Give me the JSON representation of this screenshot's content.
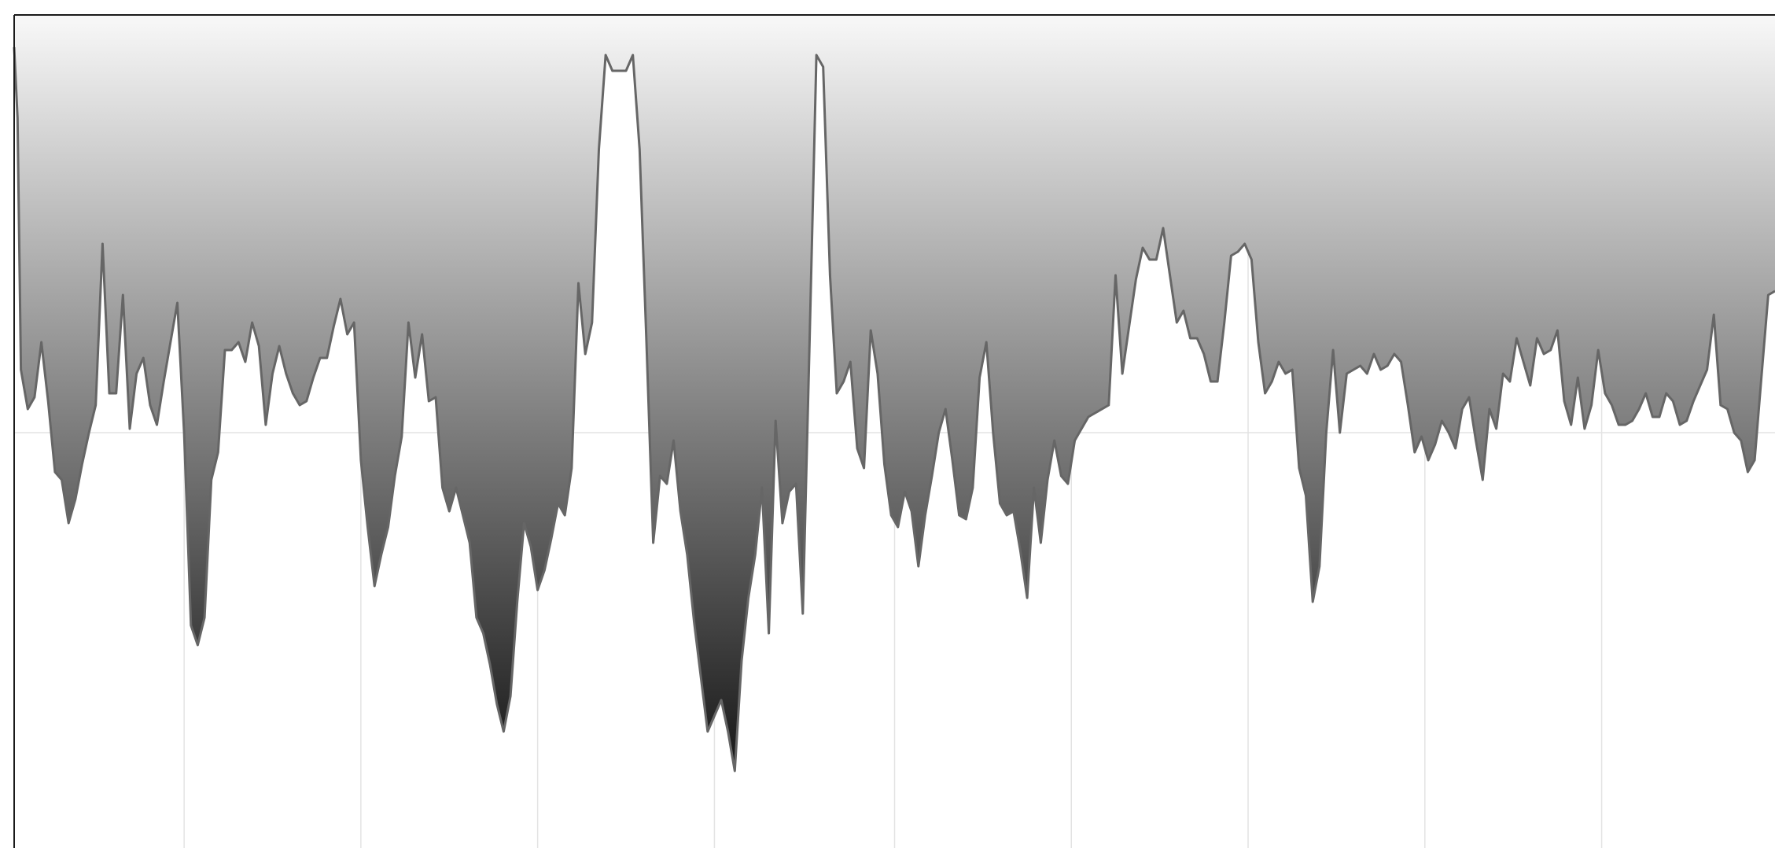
{
  "chart_data": {
    "type": "area",
    "title": "",
    "xlabel": "",
    "ylabel": "",
    "grid": true,
    "xlim": [
      0,
      518
    ],
    "ylim": [
      -100,
      100
    ],
    "x_gridlines": [
      50,
      102,
      154,
      206,
      259,
      311,
      363,
      415,
      467
    ],
    "y_gridlines": [
      0
    ],
    "fill_gradient": [
      "#f8f8f8",
      "#000000"
    ],
    "line_color": "#666666",
    "series": [
      {
        "name": "",
        "points": [
          [
            0,
            98
          ],
          [
            1,
            80
          ],
          [
            2,
            16
          ],
          [
            4,
            6
          ],
          [
            6,
            9
          ],
          [
            8,
            23
          ],
          [
            10,
            8
          ],
          [
            12,
            -10
          ],
          [
            14,
            -12
          ],
          [
            16,
            -23
          ],
          [
            18,
            -17
          ],
          [
            20,
            -8
          ],
          [
            22,
            0
          ],
          [
            24,
            7
          ],
          [
            26,
            48
          ],
          [
            28,
            10
          ],
          [
            30,
            10
          ],
          [
            32,
            35
          ],
          [
            34,
            1
          ],
          [
            36,
            15
          ],
          [
            38,
            19
          ],
          [
            40,
            7
          ],
          [
            42,
            2
          ],
          [
            44,
            13
          ],
          [
            46,
            23
          ],
          [
            48,
            33
          ],
          [
            50,
            0
          ],
          [
            52,
            -49
          ],
          [
            54,
            -54
          ],
          [
            56,
            -47
          ],
          [
            58,
            -12
          ],
          [
            60,
            -5
          ],
          [
            62,
            21
          ],
          [
            64,
            21
          ],
          [
            66,
            23
          ],
          [
            68,
            18
          ],
          [
            70,
            28
          ],
          [
            72,
            22
          ],
          [
            74,
            2
          ],
          [
            76,
            15
          ],
          [
            78,
            22
          ],
          [
            80,
            15
          ],
          [
            82,
            10
          ],
          [
            84,
            7
          ],
          [
            86,
            8
          ],
          [
            88,
            14
          ],
          [
            90,
            19
          ],
          [
            92,
            19
          ],
          [
            94,
            27
          ],
          [
            96,
            34
          ],
          [
            98,
            25
          ],
          [
            100,
            28
          ],
          [
            102,
            -7
          ],
          [
            104,
            -24
          ],
          [
            106,
            -39
          ],
          [
            108,
            -31
          ],
          [
            110,
            -24
          ],
          [
            112,
            -11
          ],
          [
            114,
            -1
          ],
          [
            116,
            28
          ],
          [
            118,
            14
          ],
          [
            120,
            25
          ],
          [
            122,
            8
          ],
          [
            124,
            9
          ],
          [
            126,
            -14
          ],
          [
            128,
            -20
          ],
          [
            130,
            -14
          ],
          [
            132,
            -21
          ],
          [
            134,
            -28
          ],
          [
            136,
            -47
          ],
          [
            138,
            -51
          ],
          [
            140,
            -59
          ],
          [
            142,
            -69
          ],
          [
            144,
            -76
          ],
          [
            146,
            -67
          ],
          [
            148,
            -43
          ],
          [
            150,
            -23
          ],
          [
            152,
            -29
          ],
          [
            154,
            -40
          ],
          [
            156,
            -35
          ],
          [
            158,
            -27
          ],
          [
            160,
            -18
          ],
          [
            162,
            -21
          ],
          [
            164,
            -9
          ],
          [
            166,
            38
          ],
          [
            168,
            20
          ],
          [
            170,
            28
          ],
          [
            172,
            72
          ],
          [
            174,
            96
          ],
          [
            176,
            92
          ],
          [
            178,
            92
          ],
          [
            180,
            92
          ],
          [
            182,
            96
          ],
          [
            184,
            72
          ],
          [
            186,
            23
          ],
          [
            188,
            -28
          ],
          [
            190,
            -11
          ],
          [
            192,
            -13
          ],
          [
            194,
            -2
          ],
          [
            196,
            -20
          ],
          [
            198,
            -31
          ],
          [
            200,
            -48
          ],
          [
            202,
            -62
          ],
          [
            204,
            -76
          ],
          [
            206,
            -72
          ],
          [
            208,
            -68
          ],
          [
            210,
            -76
          ],
          [
            212,
            -86
          ],
          [
            214,
            -58
          ],
          [
            216,
            -42
          ],
          [
            218,
            -31
          ],
          [
            220,
            -14
          ],
          [
            222,
            -51
          ],
          [
            224,
            3
          ],
          [
            226,
            -23
          ],
          [
            228,
            -15
          ],
          [
            230,
            -13
          ],
          [
            232,
            -46
          ],
          [
            234,
            23
          ],
          [
            236,
            96
          ],
          [
            238,
            93
          ],
          [
            240,
            40
          ],
          [
            242,
            10
          ],
          [
            244,
            13
          ],
          [
            246,
            18
          ],
          [
            248,
            -4
          ],
          [
            250,
            -9
          ],
          [
            252,
            26
          ],
          [
            254,
            15
          ],
          [
            256,
            -8
          ],
          [
            258,
            -21
          ],
          [
            260,
            -24
          ],
          [
            262,
            -15
          ],
          [
            264,
            -20
          ],
          [
            266,
            -34
          ],
          [
            268,
            -21
          ],
          [
            270,
            -11
          ],
          [
            272,
            0
          ],
          [
            274,
            6
          ],
          [
            276,
            -7
          ],
          [
            278,
            -21
          ],
          [
            280,
            -22
          ],
          [
            282,
            -14
          ],
          [
            284,
            14
          ],
          [
            286,
            23
          ],
          [
            288,
            0
          ],
          [
            290,
            -18
          ],
          [
            292,
            -21
          ],
          [
            294,
            -20
          ],
          [
            296,
            -30
          ],
          [
            298,
            -42
          ],
          [
            300,
            -14
          ],
          [
            302,
            -28
          ],
          [
            304,
            -12
          ],
          [
            306,
            -2
          ],
          [
            308,
            -11
          ],
          [
            310,
            -13
          ],
          [
            312,
            -2
          ],
          [
            314,
            1
          ],
          [
            316,
            4
          ],
          [
            318,
            5
          ],
          [
            320,
            6
          ],
          [
            322,
            7
          ],
          [
            324,
            40
          ],
          [
            326,
            15
          ],
          [
            328,
            27
          ],
          [
            330,
            39
          ],
          [
            332,
            47
          ],
          [
            334,
            44
          ],
          [
            336,
            44
          ],
          [
            338,
            52
          ],
          [
            340,
            40
          ],
          [
            342,
            28
          ],
          [
            344,
            31
          ],
          [
            346,
            24
          ],
          [
            348,
            24
          ],
          [
            350,
            20
          ],
          [
            352,
            13
          ],
          [
            354,
            13
          ],
          [
            356,
            28
          ],
          [
            358,
            45
          ],
          [
            360,
            46
          ],
          [
            362,
            48
          ],
          [
            364,
            44
          ],
          [
            366,
            23
          ],
          [
            368,
            10
          ],
          [
            370,
            13
          ],
          [
            372,
            18
          ],
          [
            374,
            15
          ],
          [
            376,
            16
          ],
          [
            378,
            -9
          ],
          [
            380,
            -16
          ],
          [
            382,
            -43
          ],
          [
            384,
            -34
          ],
          [
            386,
            0
          ],
          [
            388,
            21
          ],
          [
            390,
            0
          ],
          [
            392,
            15
          ],
          [
            394,
            16
          ],
          [
            396,
            17
          ],
          [
            398,
            15
          ],
          [
            400,
            20
          ],
          [
            402,
            16
          ],
          [
            404,
            17
          ],
          [
            406,
            20
          ],
          [
            408,
            18
          ],
          [
            410,
            7
          ],
          [
            412,
            -5
          ],
          [
            414,
            -1
          ],
          [
            416,
            -7
          ],
          [
            418,
            -3
          ],
          [
            420,
            3
          ],
          [
            422,
            0
          ],
          [
            424,
            -4
          ],
          [
            426,
            6
          ],
          [
            428,
            9
          ],
          [
            430,
            -2
          ],
          [
            432,
            -12
          ],
          [
            434,
            6
          ],
          [
            436,
            1
          ],
          [
            438,
            15
          ],
          [
            440,
            13
          ],
          [
            442,
            24
          ],
          [
            444,
            18
          ],
          [
            446,
            12
          ],
          [
            448,
            24
          ],
          [
            450,
            20
          ],
          [
            452,
            21
          ],
          [
            454,
            26
          ],
          [
            456,
            8
          ],
          [
            458,
            2
          ],
          [
            460,
            14
          ],
          [
            462,
            1
          ],
          [
            464,
            7
          ],
          [
            466,
            21
          ],
          [
            468,
            10
          ],
          [
            470,
            7
          ],
          [
            472,
            2
          ],
          [
            474,
            2
          ],
          [
            476,
            3
          ],
          [
            478,
            6
          ],
          [
            480,
            10
          ],
          [
            482,
            4
          ],
          [
            484,
            4
          ],
          [
            486,
            10
          ],
          [
            488,
            8
          ],
          [
            490,
            2
          ],
          [
            492,
            3
          ],
          [
            494,
            8
          ],
          [
            496,
            12
          ],
          [
            498,
            16
          ],
          [
            500,
            30
          ],
          [
            502,
            7
          ],
          [
            504,
            6
          ],
          [
            506,
            0
          ],
          [
            508,
            -2
          ],
          [
            510,
            -10
          ],
          [
            512,
            -7
          ],
          [
            514,
            14
          ],
          [
            516,
            35
          ],
          [
            518,
            36
          ]
        ]
      }
    ]
  }
}
